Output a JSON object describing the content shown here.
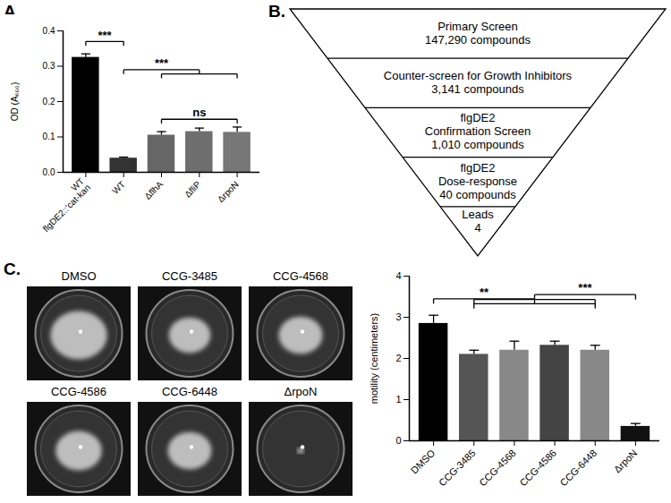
{
  "panels": {
    "A": "A.",
    "B": "B.",
    "C": "C."
  },
  "chart_data": [
    {
      "type": "bar",
      "y_label": "OD (A₆₀₀)",
      "categories": [
        "WT\nflgDE2::'cat-kan",
        "WT",
        "ΔflhA",
        "ΔfliP",
        "ΔrpoN"
      ],
      "values": [
        0.325,
        0.04,
        0.105,
        0.115,
        0.113
      ],
      "errors": [
        0.01,
        0.003,
        0.01,
        0.01,
        0.015
      ],
      "colors": [
        "#000000",
        "#333333",
        "#666666",
        "#6e6e6e",
        "#777777"
      ],
      "ylim": [
        0,
        0.4
      ],
      "yticks": [
        {
          "value": 0,
          "label": "0.0"
        },
        0.1,
        0.2,
        0.3,
        0.4
      ],
      "annotations": [
        {
          "text": "***",
          "from": [
            0,
            0
          ],
          "to": [
            1,
            1
          ],
          "y": 0.37
        },
        {
          "text": "***",
          "from": [
            1,
            1
          ],
          "to": [
            2,
            4
          ],
          "y": 0.29
        },
        {
          "text": "ns",
          "from": [
            2,
            2
          ],
          "to": [
            4,
            4
          ],
          "y": 0.15
        }
      ]
    },
    {
      "type": "bar",
      "y_label": "motility (centimeters)",
      "categories": [
        "DMSO",
        "CCG-3485",
        "CCG-4568",
        "CCG-4586",
        "CCG-6448",
        "ΔrpoN"
      ],
      "values": [
        2.85,
        2.1,
        2.2,
        2.32,
        2.2,
        0.35
      ],
      "errors": [
        0.2,
        0.1,
        0.22,
        0.1,
        0.12,
        0.07
      ],
      "colors": [
        "#000000",
        "#555555",
        "#888888",
        "#444444",
        "#888888",
        "#111111"
      ],
      "ylim": [
        0,
        4
      ],
      "yticks": [
        0,
        1,
        2,
        3,
        4
      ],
      "annotations": [
        {
          "text": "**",
          "from": [
            0,
            0
          ],
          "to": [
            1,
            4
          ],
          "y": 3.45
        },
        {
          "text": "***",
          "from": [
            1,
            4
          ],
          "to": [
            5,
            5
          ],
          "y": 3.55
        }
      ]
    }
  ],
  "funnel": {
    "stages": [
      {
        "lines": [
          "Primary Screen",
          "147,290 compounds"
        ]
      },
      {
        "lines": [
          "Counter-screen for Growth Inhibitors",
          "3,141 compounds"
        ]
      },
      {
        "lines": [
          "flgDE2",
          "Confirmation Screen",
          "1,010 compounds"
        ]
      },
      {
        "lines": [
          "flgDE2",
          "Dose-response",
          "40 compounds"
        ]
      },
      {
        "lines": [
          "Leads",
          "4"
        ]
      }
    ]
  }
}
